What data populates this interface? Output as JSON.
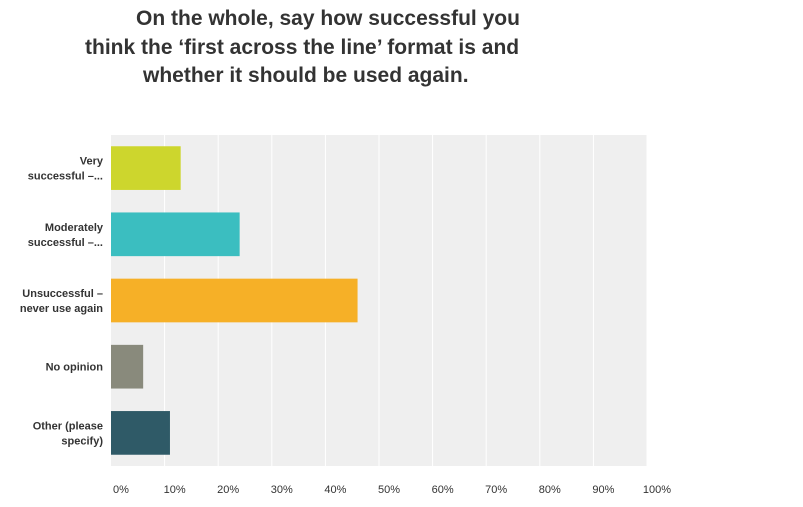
{
  "title_lines": [
    "On the whole, say how successful you",
    "think the ‘first across the line’ format is and",
    "whether it should be used again."
  ],
  "colors": {
    "plot_background": "#efefef",
    "gridline": "#ffffff",
    "text": "#333333"
  },
  "chart_data": {
    "type": "bar",
    "orientation": "horizontal",
    "title": "On the whole, say how successful you think the ‘first across the line’ format is and whether it should be used again.",
    "categories": [
      [
        "Very",
        "successful –..."
      ],
      [
        "Moderately",
        "successful –..."
      ],
      [
        "Unsuccessful –",
        "never use again"
      ],
      [
        "No opinion"
      ],
      [
        "Other (please",
        "specify)"
      ]
    ],
    "values": [
      13,
      24,
      46,
      6,
      11
    ],
    "bar_colors": [
      "#cdd62d",
      "#3bbec0",
      "#f6b027",
      "#898a7c",
      "#2f5a67"
    ],
    "xticks": [
      "0%",
      "10%",
      "20%",
      "30%",
      "40%",
      "50%",
      "60%",
      "70%",
      "80%",
      "90%",
      "100%"
    ],
    "xlim": [
      0,
      100
    ],
    "xlabel": "",
    "ylabel": "",
    "grid": true
  }
}
